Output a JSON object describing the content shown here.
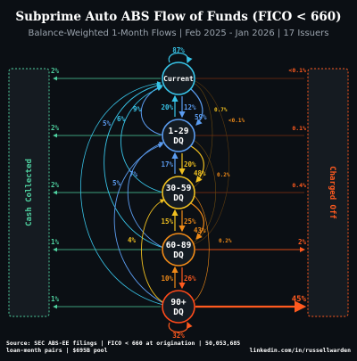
{
  "title": "Subprime Auto ABS Flow of Funds (FICO < 660)",
  "subtitle": "Balance-Weighted 1-Month Flows | Feb 2025 - Jan 2026 | 17 Issuers",
  "colors": {
    "background": "#0b0f14",
    "cash": "#4fd1a0",
    "charged_off": "#ff5a1f",
    "current": "#38c4e8",
    "dq_1_29": "#5b9cf0",
    "dq_30_59": "#f0c020",
    "dq_60_89": "#f08a18",
    "dq_90_plus": "#ff4a1a"
  },
  "left_box": {
    "label": "Cash Collected"
  },
  "right_box": {
    "label": "Charged Off"
  },
  "nodes": [
    {
      "id": "current",
      "line1": "Current",
      "line2": "",
      "self_loop": "87%"
    },
    {
      "id": "dq_1_29",
      "line1": "1-29",
      "line2": "DQ"
    },
    {
      "id": "dq_30_59",
      "line1": "30-59",
      "line2": "DQ"
    },
    {
      "id": "dq_60_89",
      "line1": "60-89",
      "line2": "DQ"
    },
    {
      "id": "dq_90_plus",
      "line1": "90+",
      "line2": "DQ",
      "self_loop": "32%"
    }
  ],
  "flows": {
    "to_cash": [
      "2%",
      "2%",
      "2%",
      "1%",
      "1%"
    ],
    "to_charged_off": [
      "<0.1%",
      "0.1%",
      "0.4%",
      "2%",
      "45%"
    ],
    "roll_down": [
      "12%",
      "20%",
      "25%",
      "26%"
    ],
    "cure_up": [
      "20%",
      "17%",
      "15%",
      "10%"
    ],
    "current_to_deeper": [
      "59%",
      "0.7%",
      "<0.1%"
    ],
    "dq_1_29_to_deeper": [
      "48%",
      "0.2%"
    ],
    "dq_30_59_to_90": [
      "43%"
    ],
    "dq_60_89_to_90_side": [
      "0.2%"
    ],
    "arc_left": [
      "5%",
      "6%",
      "9%",
      "5%",
      "7%",
      "4%"
    ]
  },
  "footer": {
    "source_line1": "Source: SEC ABS-EE filings | FICO < 660 at origination | 50,053,685",
    "source_line2": "loan-month pairs | $695B pool",
    "credit": "linkedin.com/in/russellwarden"
  }
}
